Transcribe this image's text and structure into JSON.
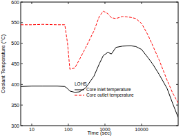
{
  "chart_data": {
    "type": "line",
    "x_label": "Time (sec)",
    "y_label": "Coolant Temperature (°C)",
    "legend_title": "LOHS",
    "legend": "lower center",
    "log": "x",
    "x": [
      5,
      10,
      20,
      50,
      80,
      95,
      110,
      150,
      200,
      300,
      500,
      700,
      900,
      1200,
      1500,
      2000,
      3000,
      5000,
      7000,
      10000,
      15000,
      20000,
      30000,
      50000,
      70000,
      100000
    ],
    "series": [
      {
        "name": "Core inlet temperature",
        "color": "#000000",
        "line_style": "solid",
        "values": [
          395,
          396,
          396,
          396,
          395,
          390,
          384,
          381,
          382,
          392,
          420,
          450,
          470,
          478,
          474,
          490,
          493,
          494,
          492,
          485,
          465,
          450,
          425,
          390,
          355,
          320
        ]
      },
      {
        "name": "Core outlet temperature",
        "color": "#ff0000",
        "line_style": "dashed",
        "values": [
          545,
          545,
          546,
          545,
          545,
          500,
          437,
          440,
          460,
          490,
          530,
          565,
          578,
          572,
          562,
          560,
          565,
          563,
          560,
          548,
          520,
          495,
          460,
          410,
          380,
          355
        ]
      }
    ],
    "xlim": [
      5,
      100000
    ],
    "xticks": [
      10,
      100,
      1000,
      10000
    ],
    "ylim": [
      300,
      600
    ],
    "yticks": [
      300,
      350,
      400,
      450,
      500,
      550,
      600
    ]
  }
}
